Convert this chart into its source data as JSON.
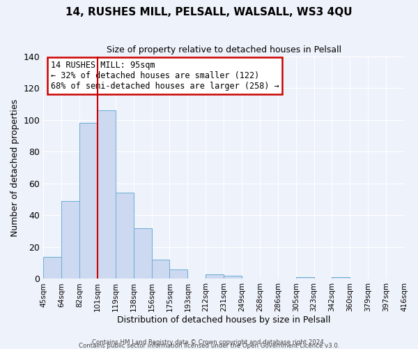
{
  "title": "14, RUSHES MILL, PELSALL, WALSALL, WS3 4QU",
  "subtitle": "Size of property relative to detached houses in Pelsall",
  "xlabel": "Distribution of detached houses by size in Pelsall",
  "ylabel": "Number of detached properties",
  "bar_values": [
    14,
    49,
    98,
    106,
    54,
    32,
    12,
    6,
    0,
    3,
    2,
    0,
    0,
    0,
    1,
    0,
    1,
    0,
    0,
    0
  ],
  "bin_labels": [
    "45sqm",
    "64sqm",
    "82sqm",
    "101sqm",
    "119sqm",
    "138sqm",
    "156sqm",
    "175sqm",
    "193sqm",
    "212sqm",
    "231sqm",
    "249sqm",
    "268sqm",
    "286sqm",
    "305sqm",
    "323sqm",
    "342sqm",
    "360sqm",
    "379sqm",
    "397sqm",
    "416sqm"
  ],
  "bar_color": "#ccd9f0",
  "bar_edge_color": "#6baed6",
  "vline_color": "#cc0000",
  "annotation_title": "14 RUSHES MILL: 95sqm",
  "annotation_line1": "← 32% of detached houses are smaller (122)",
  "annotation_line2": "68% of semi-detached houses are larger (258) →",
  "annotation_box_edge": "#cc0000",
  "ylim": [
    0,
    140
  ],
  "yticks": [
    0,
    20,
    40,
    60,
    80,
    100,
    120,
    140
  ],
  "footer1": "Contains HM Land Registry data © Crown copyright and database right 2024.",
  "footer2": "Contains public sector information licensed under the Open Government Licence v3.0.",
  "background_color": "#eef2fa",
  "grid_color": "#ffffff"
}
